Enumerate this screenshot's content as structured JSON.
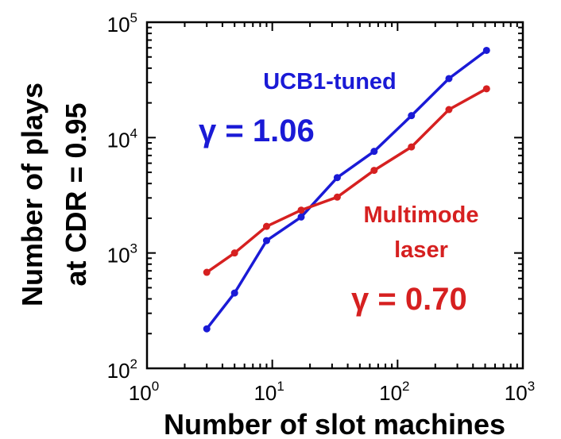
{
  "chart_data": {
    "type": "line",
    "xlabel": "Number of slot machines",
    "ylabel_line1": "Number of plays",
    "ylabel_line2": "at CDR = 0.95",
    "xscale": "log",
    "yscale": "log",
    "xlim": [
      1,
      1000
    ],
    "ylim": [
      100,
      100000
    ],
    "xticks": [
      {
        "base": "10",
        "exp": "0"
      },
      {
        "base": "10",
        "exp": "1"
      },
      {
        "base": "10",
        "exp": "2"
      },
      {
        "base": "10",
        "exp": "3"
      }
    ],
    "yticks": [
      {
        "base": "10",
        "exp": "2"
      },
      {
        "base": "10",
        "exp": "3"
      },
      {
        "base": "10",
        "exp": "4"
      },
      {
        "base": "10",
        "exp": "5"
      }
    ],
    "grid": false,
    "series": [
      {
        "name": "UCB1-tuned",
        "color": "#1a1ad6",
        "x": [
          3,
          5,
          9,
          17,
          33,
          65,
          129,
          257,
          513
        ],
        "y": [
          220,
          450,
          1280,
          2050,
          4500,
          7600,
          15500,
          32500,
          57000
        ]
      },
      {
        "name": "Multimode laser",
        "color": "#d62020",
        "x": [
          3,
          5,
          9,
          17,
          33,
          65,
          129,
          257,
          513
        ],
        "y": [
          680,
          1000,
          1700,
          2350,
          3050,
          5200,
          8300,
          17500,
          26500
        ]
      }
    ],
    "annotations": {
      "ucb_label": "UCB1-tuned",
      "ucb_gamma": "γ = 1.06",
      "laser_label_line1": "Multimode",
      "laser_label_line2": "laser",
      "laser_gamma": "γ = 0.70"
    }
  }
}
